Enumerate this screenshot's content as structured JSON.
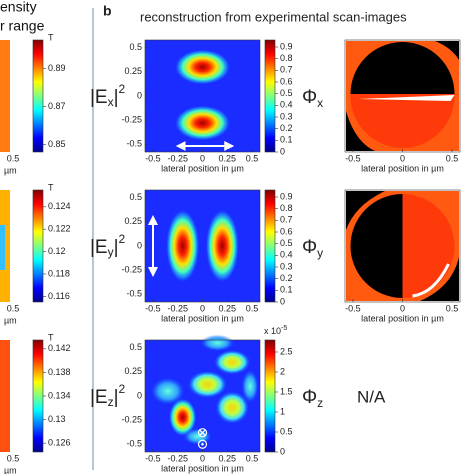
{
  "chart_data": [
    {
      "type": "heatmap",
      "panel": "a",
      "title": [
        "ensity",
        "r range"
      ],
      "colorbar_label": "T",
      "clim": [
        0.846,
        0.905
      ],
      "cticks": [
        0.89,
        0.87,
        0.85
      ],
      "xticks": [
        0.5
      ],
      "xlabel": "µm"
    },
    {
      "type": "heatmap",
      "panel": "a",
      "colorbar_label": "T",
      "clim": [
        0.1155,
        0.1255
      ],
      "cticks": [
        0.124,
        0.122,
        0.12,
        0.118,
        0.116
      ],
      "xticks": [
        0.5
      ],
      "xlabel": "µm"
    },
    {
      "type": "heatmap",
      "panel": "a",
      "colorbar_label": "T",
      "clim": [
        0.1245,
        0.1435
      ],
      "cticks": [
        0.142,
        0.138,
        0.134,
        0.13,
        0.126
      ],
      "xticks": [
        0.5
      ],
      "xlabel": "µm"
    },
    {
      "type": "heatmap",
      "panel": "b",
      "letter": "b",
      "title": "reconstruction from experimental scan-images",
      "label": [
        "|E",
        "x",
        "|",
        "2"
      ],
      "clim": [
        0,
        0.96
      ],
      "cticks": [
        0.9,
        0.8,
        0.7,
        0.6,
        0.5,
        0.4,
        0.3,
        0.2,
        0.1,
        0
      ],
      "xlim": [
        -0.58,
        0.58
      ],
      "ylim": [
        -0.58,
        0.58
      ],
      "xticks": [
        -0.5,
        -0.25,
        0,
        0.25,
        0.5
      ],
      "yticks": [
        0.5,
        0.25,
        0,
        -0.25,
        -0.5
      ],
      "xlabel": "lateral position in µm",
      "phase_label": [
        "Φ",
        "x"
      ],
      "phase_xticks": [
        -0.5,
        0,
        0.5
      ],
      "phase_xlabel": "lateral position in µm"
    },
    {
      "type": "heatmap",
      "panel": "b",
      "label": [
        "|E",
        "y",
        "|",
        "2"
      ],
      "clim": [
        0,
        0.96
      ],
      "cticks": [
        0.9,
        0.8,
        0.7,
        0.6,
        0.5,
        0.4,
        0.3,
        0.2,
        0.1,
        0
      ],
      "xlim": [
        -0.58,
        0.58
      ],
      "ylim": [
        -0.58,
        0.58
      ],
      "xticks": [
        -0.5,
        -0.25,
        0,
        0.25,
        0.5
      ],
      "yticks": [
        0.5,
        0.25,
        0,
        -0.25,
        -0.5
      ],
      "xlabel": "lateral position in µm",
      "phase_label": [
        "Φ",
        "y"
      ],
      "phase_xticks": [
        -0.5,
        0,
        0.5
      ],
      "phase_xlabel": "lateral position in µm"
    },
    {
      "type": "heatmap",
      "panel": "b",
      "label": [
        "|E",
        "z",
        "|",
        "2"
      ],
      "colorbar_label": "x 10",
      "colorbar_exp": "-5",
      "clim": [
        0,
        2.8
      ],
      "cticks": [
        2.5,
        2,
        1.5,
        1,
        0.5,
        0
      ],
      "xlim": [
        -0.58,
        0.58
      ],
      "ylim": [
        -0.58,
        0.58
      ],
      "xticks": [
        -0.5,
        -0.25,
        0,
        0.25,
        0.5
      ],
      "yticks": [
        0.5,
        0.25,
        0,
        -0.25,
        -0.5
      ],
      "xlabel": "lateral position in µm",
      "phase_label": [
        "Φ",
        "z"
      ],
      "phase_text": "N/A"
    }
  ]
}
